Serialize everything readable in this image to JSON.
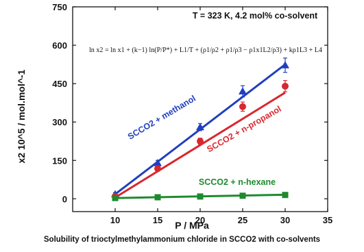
{
  "chart_data": {
    "type": "scatter",
    "xlabel": "P / MPa",
    "ylabel": "x2 10^5 / mol.mol^-1",
    "xlim": [
      5,
      35
    ],
    "ylim": [
      -50,
      750
    ],
    "x_ticks": [
      10,
      15,
      20,
      25,
      30,
      35
    ],
    "y_ticks": [
      0,
      150,
      300,
      450,
      600,
      750
    ],
    "conditions_label": "T = 323 K, 4.2 mol% co-solvent",
    "equation": "ln x2 = ln x1 + (k−1) ln(P/P*) + L1/T + (ρ1/ρ2 + ρ1/ρ3 − ρ1x1L2/ρ3) + kρ1L3 + L4",
    "caption": "Solubility of trioctylmethylammonium chloride in SCCO2 with co-solvents",
    "series": [
      {
        "name": "SCCO2 + methanol",
        "color": "#1f3fbf",
        "marker": "triangle",
        "x": [
          10,
          15,
          20,
          25,
          30
        ],
        "y": [
          18,
          140,
          280,
          420,
          522
        ],
        "err": [
          6,
          10,
          14,
          22,
          28
        ],
        "fit": [
          [
            10,
            18
          ],
          [
            30,
            525
          ]
        ]
      },
      {
        "name": "SCCO2 + n-propanol",
        "color": "#d8282f",
        "marker": "circle",
        "x": [
          10,
          15,
          20,
          25,
          30
        ],
        "y": [
          10,
          118,
          225,
          360,
          440
        ],
        "err": [
          6,
          10,
          12,
          18,
          22
        ],
        "fit": [
          [
            10,
            5
          ],
          [
            30,
            415
          ]
        ]
      },
      {
        "name": "SCCO2 + n-hexane",
        "color": "#1e8a2e",
        "marker": "square",
        "x": [
          10,
          15,
          20,
          25,
          30
        ],
        "y": [
          3,
          6,
          9,
          12,
          15
        ],
        "err": [
          0,
          0,
          0,
          0,
          0
        ],
        "fit": [
          [
            10,
            3
          ],
          [
            30,
            16
          ]
        ]
      }
    ]
  }
}
